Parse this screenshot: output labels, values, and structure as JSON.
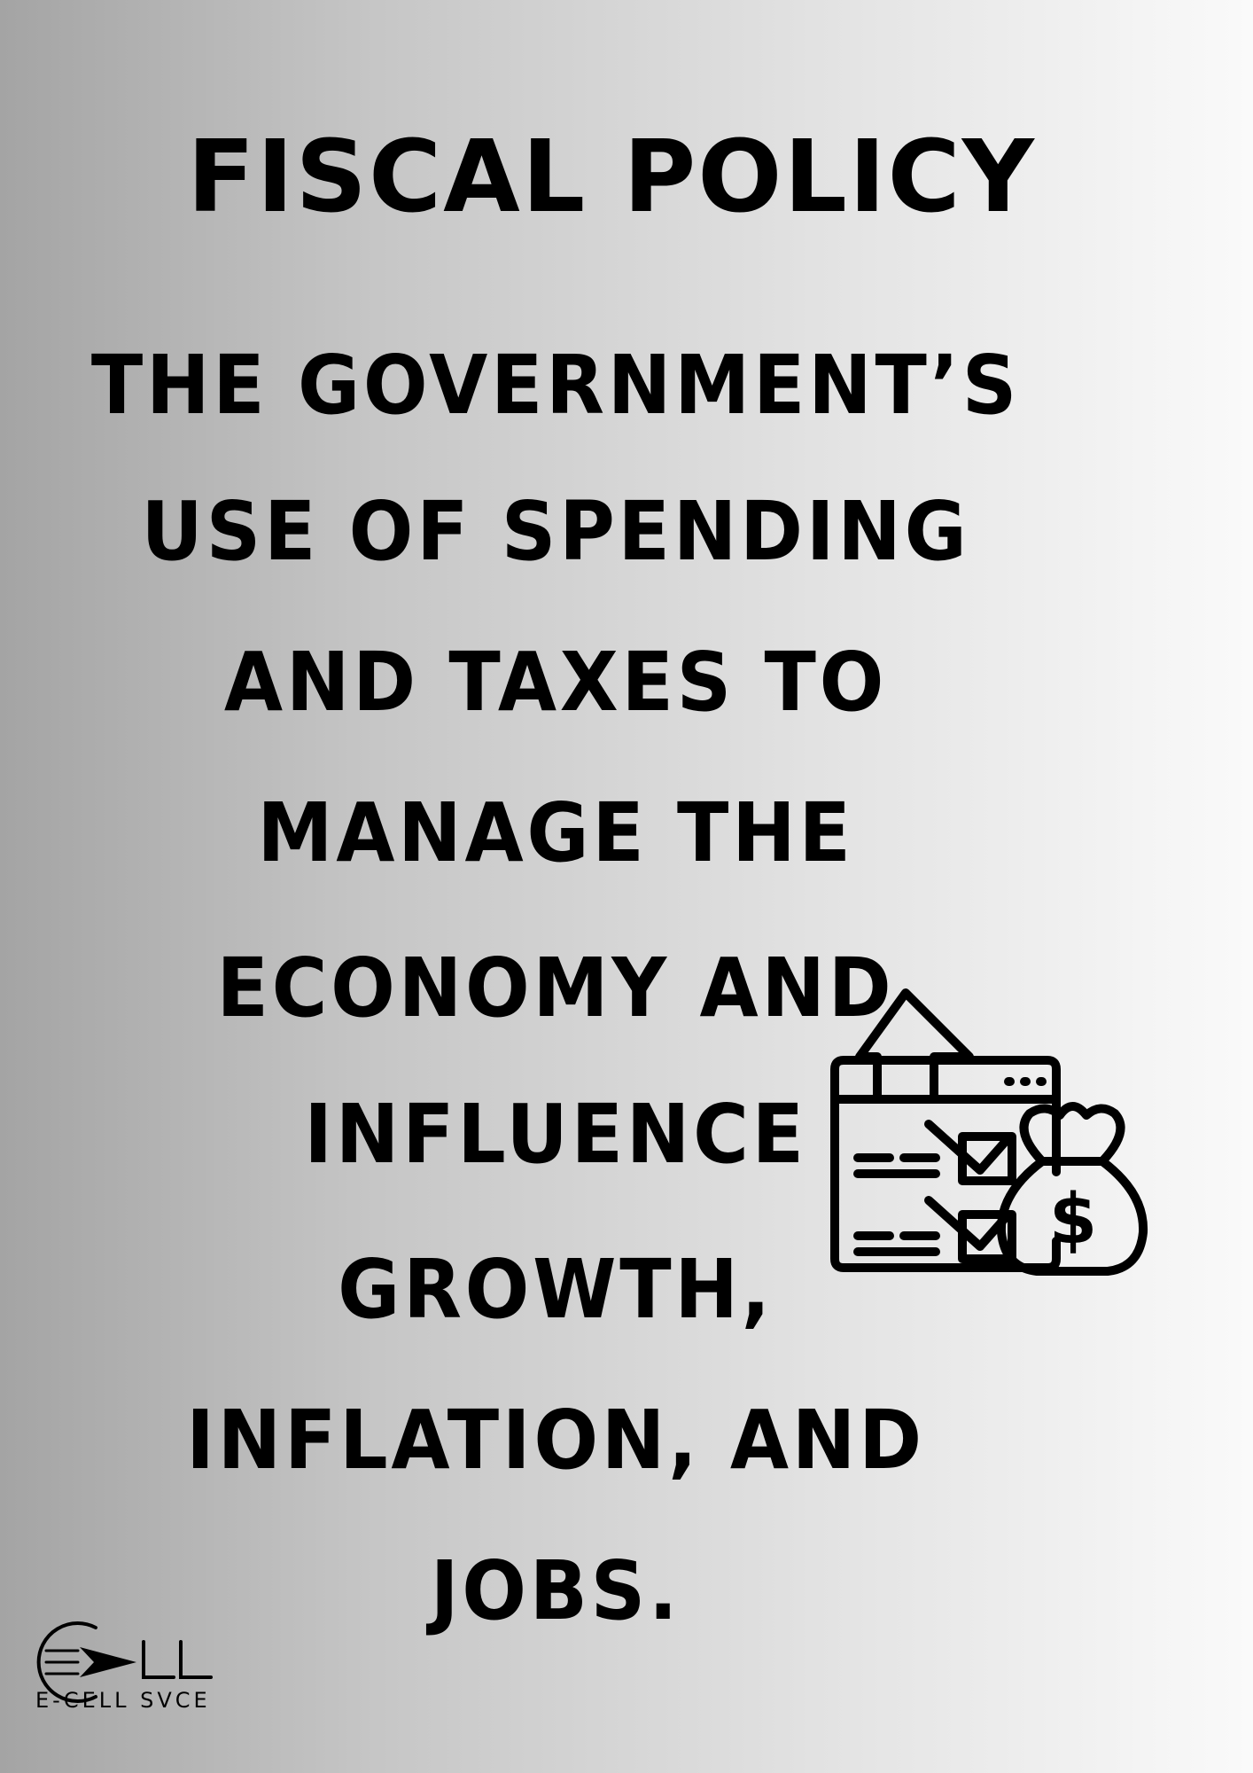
{
  "title": "FISCAL POLICY",
  "definition_lines": [
    "THE GOVERNMENT’S",
    "USE OF SPENDING",
    "AND TAXES TO",
    "MANAGE THE",
    "ECONOMY AND",
    "INFLUENCE",
    "GROWTH,",
    "INFLATION, AND",
    "JOBS."
  ],
  "illustration": {
    "icon": "budget-checklist-money-bag-icon",
    "symbol": "$"
  },
  "logo": {
    "mark": "ECELL",
    "caption": "E-CELL SVCE"
  },
  "colors": {
    "text": "#000000",
    "background_left": "#a4a4a4",
    "background_right": "#fafafa"
  }
}
